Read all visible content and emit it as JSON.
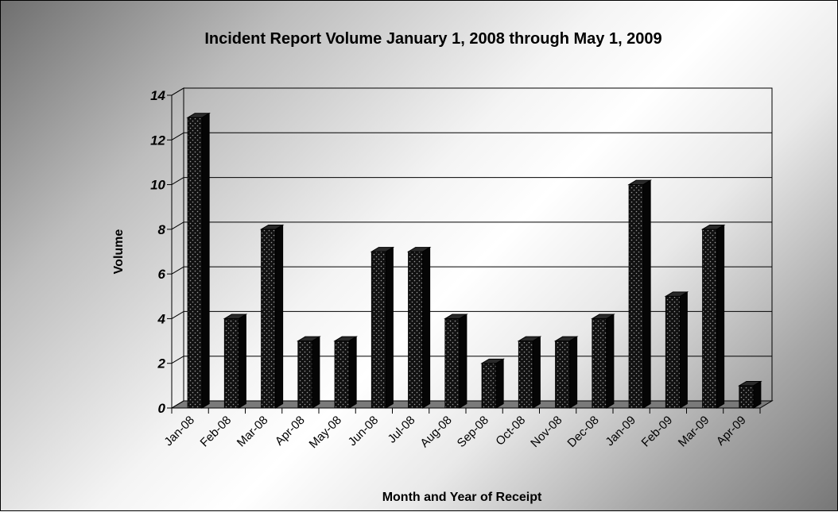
{
  "chart_data": {
    "type": "bar",
    "title": "Incident Report Volume January 1, 2008 through May 1, 2009",
    "xlabel": "Month and Year of Receipt",
    "ylabel": "Volume",
    "categories": [
      "Jan-08",
      "Feb-08",
      "Mar-08",
      "Apr-08",
      "May-08",
      "Jun-08",
      "Jul-08",
      "Aug-08",
      "Sep-08",
      "Oct-08",
      "Nov-08",
      "Dec-08",
      "Jan-09",
      "Feb-09",
      "Mar-09",
      "Apr-09"
    ],
    "values": [
      13,
      4,
      8,
      3,
      3,
      7,
      7,
      4,
      2,
      3,
      3,
      4,
      10,
      5,
      8,
      1
    ],
    "yticks": [
      "0",
      "2",
      "4",
      "6",
      "8",
      "10",
      "12",
      "14"
    ],
    "ylim": [
      0,
      14
    ],
    "grid": true,
    "legend": "none",
    "colors": {
      "bar": "#111111",
      "bar_dots": "#9a9a9a",
      "floor": "#7a7a7a",
      "gridline": "#000000"
    }
  }
}
